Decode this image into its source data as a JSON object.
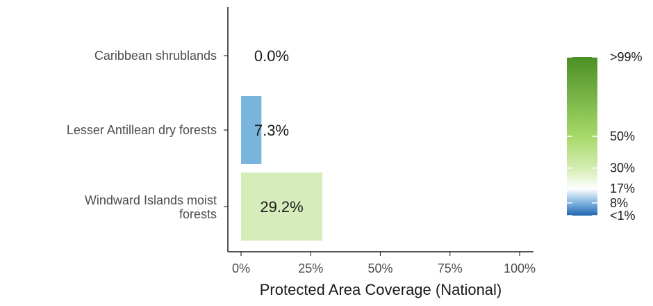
{
  "chart_data": {
    "type": "bar",
    "orientation": "horizontal",
    "categories": [
      "Caribbean shrublands",
      "Lesser Antillean dry forests",
      "Windward Islands moist forests"
    ],
    "values": [
      0.0,
      7.3,
      29.2
    ],
    "data_labels": [
      "0.0%",
      "7.3%",
      "29.2%"
    ],
    "bar_colors": [
      "#f2f2f2",
      "#78b4dc",
      "#d6ecbb"
    ],
    "xlabel": "Protected Area Coverage (National)",
    "xlim": [
      0,
      100
    ],
    "xticks": [
      0,
      25,
      50,
      75,
      100
    ],
    "xtick_labels": [
      "0%",
      "25%",
      "50%",
      "75%",
      "100%"
    ],
    "grid": false,
    "legend": {
      "type": "colorbar",
      "placement": "right",
      "labels": [
        {
          "text": ">99%",
          "value": 100
        },
        {
          "text": "50%",
          "value": 50
        },
        {
          "text": "30%",
          "value": 30
        },
        {
          "text": "17%",
          "value": 17
        },
        {
          "text": "8%",
          "value": 8
        },
        {
          "text": "<1%",
          "value": 0
        }
      ],
      "colors": [
        {
          "value": 0,
          "color": "#1f66b0"
        },
        {
          "value": 8,
          "color": "#7fb3de"
        },
        {
          "value": 17,
          "color": "#ffffff"
        },
        {
          "value": 30,
          "color": "#d4ecb2"
        },
        {
          "value": 50,
          "color": "#a6d96a"
        },
        {
          "value": 100,
          "color": "#4b8f24"
        }
      ]
    }
  }
}
